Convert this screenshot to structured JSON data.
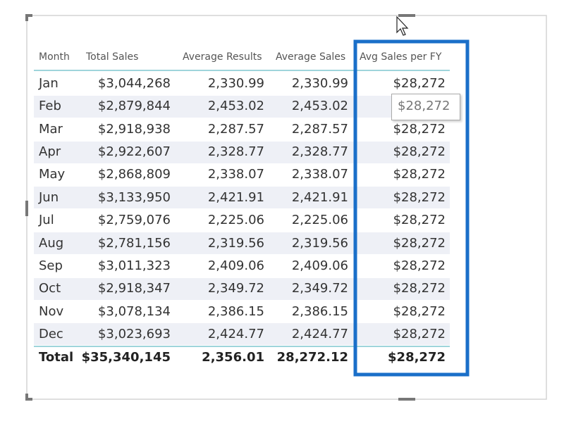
{
  "table": {
    "columns": [
      "Month",
      "Total Sales",
      "Average Results",
      "Average Sales",
      "Avg Sales per FY"
    ],
    "rows": [
      [
        "Jan",
        "$3,044,268",
        "2,330.99",
        "2,330.99",
        "$28,272"
      ],
      [
        "Feb",
        "$2,879,844",
        "2,453.02",
        "2,453.02",
        "$28,272"
      ],
      [
        "Mar",
        "$2,918,938",
        "2,287.57",
        "2,287.57",
        "$28,272"
      ],
      [
        "Apr",
        "$2,922,607",
        "2,328.77",
        "2,328.77",
        "$28,272"
      ],
      [
        "May",
        "$2,868,809",
        "2,338.07",
        "2,338.07",
        "$28,272"
      ],
      [
        "Jun",
        "$3,133,950",
        "2,421.91",
        "2,421.91",
        "$28,272"
      ],
      [
        "Jul",
        "$2,759,076",
        "2,225.06",
        "2,225.06",
        "$28,272"
      ],
      [
        "Aug",
        "$2,781,156",
        "2,319.56",
        "2,319.56",
        "$28,272"
      ],
      [
        "Sep",
        "$3,011,323",
        "2,409.06",
        "2,409.06",
        "$28,272"
      ],
      [
        "Oct",
        "$2,918,347",
        "2,349.72",
        "2,349.72",
        "$28,272"
      ],
      [
        "Nov",
        "$3,078,134",
        "2,386.15",
        "2,386.15",
        "$28,272"
      ],
      [
        "Dec",
        "$3,023,693",
        "2,424.77",
        "2,424.77",
        "$28,272"
      ]
    ],
    "total": [
      "Total",
      "$35,340,145",
      "2,356.01",
      "28,272.12",
      "$28,272"
    ]
  },
  "tooltip": "$28,272"
}
